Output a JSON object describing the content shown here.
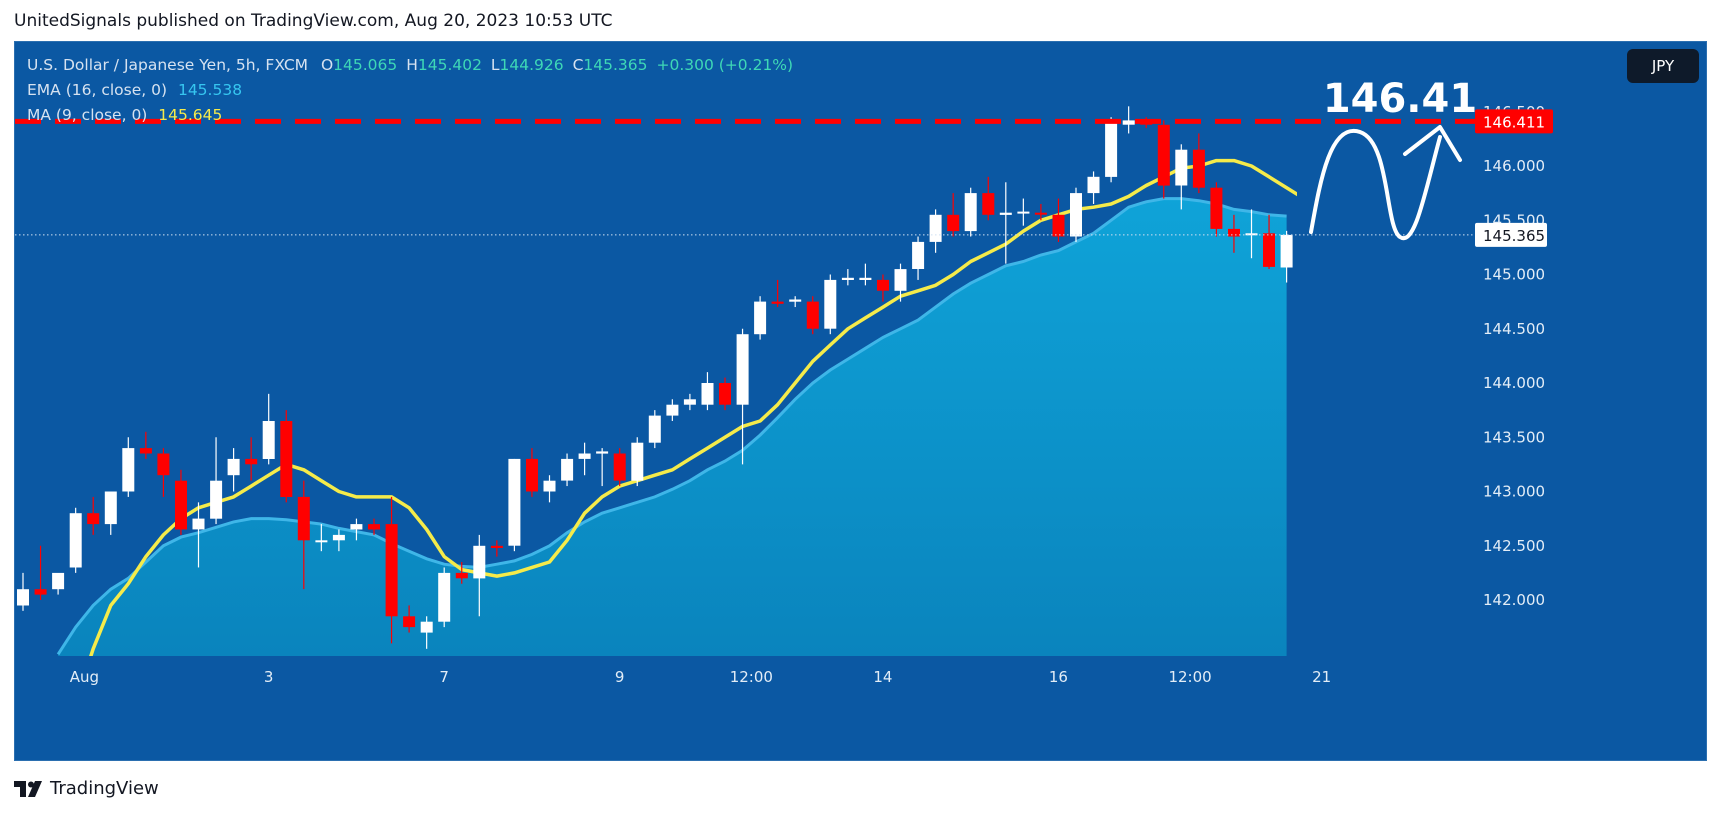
{
  "header": {
    "text": "UnitedSignals published on TradingView.com, Aug 20, 2023 10:53 UTC"
  },
  "legend": {
    "symbol": "U.S. Dollar / Japanese Yen, 5h, FXCM",
    "o_label": "O",
    "o": "145.065",
    "h_label": "H",
    "h": "145.402",
    "l_label": "L",
    "l": "144.926",
    "c_label": "C",
    "c": "145.365",
    "change": "+0.300 (+0.21%)",
    "ema_label": "EMA (16, close, 0)",
    "ema_value": "145.538",
    "ma_label": "MA (9, close, 0)",
    "ma_value": "145.645"
  },
  "currency_button": "JPY",
  "footer": {
    "brand": "TradingView"
  },
  "colors": {
    "background": "#0b58a3",
    "bull": "#ffffff",
    "bear": "#ff0000",
    "ma": "#f5eb4a",
    "ema_fill": "#0d8cc4",
    "resistance": "#ff0000"
  },
  "chart_data": {
    "type": "candlestick",
    "symbol": "USDJPY",
    "timeframe": "5h",
    "ylim": [
      141.5,
      146.6
    ],
    "yticks": [
      142.0,
      142.5,
      143.0,
      143.5,
      144.0,
      144.5,
      145.0,
      145.5,
      146.0,
      146.5
    ],
    "ytick_labels": [
      "142.000",
      "142.500",
      "143.000",
      "143.500",
      "144.000",
      "144.500",
      "145.000",
      "145.500",
      "146.000",
      "146.500"
    ],
    "xticks": [
      {
        "i": 3.5,
        "label": "Aug"
      },
      {
        "i": 14,
        "label": "3"
      },
      {
        "i": 24,
        "label": "7"
      },
      {
        "i": 34,
        "label": "9"
      },
      {
        "i": 41.5,
        "label": "12:00"
      },
      {
        "i": 49,
        "label": "14"
      },
      {
        "i": 59,
        "label": "16"
      },
      {
        "i": 66.5,
        "label": "12:00"
      },
      {
        "i": 74,
        "label": "21"
      }
    ],
    "candles": [
      {
        "o": 141.95,
        "h": 142.25,
        "l": 141.9,
        "c": 142.1
      },
      {
        "o": 142.1,
        "h": 142.5,
        "l": 142.0,
        "c": 142.05
      },
      {
        "o": 142.1,
        "h": 142.2,
        "l": 142.05,
        "c": 142.25
      },
      {
        "o": 142.3,
        "h": 142.85,
        "l": 142.25,
        "c": 142.8
      },
      {
        "o": 142.8,
        "h": 142.95,
        "l": 142.6,
        "c": 142.7
      },
      {
        "o": 142.7,
        "h": 143.0,
        "l": 142.6,
        "c": 143.0
      },
      {
        "o": 143.0,
        "h": 143.5,
        "l": 142.95,
        "c": 143.4
      },
      {
        "o": 143.4,
        "h": 143.55,
        "l": 143.3,
        "c": 143.35
      },
      {
        "o": 143.35,
        "h": 143.4,
        "l": 142.95,
        "c": 143.15
      },
      {
        "o": 143.1,
        "h": 143.2,
        "l": 142.6,
        "c": 142.65
      },
      {
        "o": 142.65,
        "h": 142.9,
        "l": 142.3,
        "c": 142.75
      },
      {
        "o": 142.75,
        "h": 143.5,
        "l": 142.7,
        "c": 143.1
      },
      {
        "o": 143.15,
        "h": 143.4,
        "l": 143.0,
        "c": 143.3
      },
      {
        "o": 143.3,
        "h": 143.5,
        "l": 143.1,
        "c": 143.25
      },
      {
        "o": 143.3,
        "h": 143.9,
        "l": 143.25,
        "c": 143.65
      },
      {
        "o": 143.65,
        "h": 143.75,
        "l": 142.9,
        "c": 142.95
      },
      {
        "o": 142.95,
        "h": 143.1,
        "l": 142.1,
        "c": 142.55
      },
      {
        "o": 142.55,
        "h": 142.7,
        "l": 142.45,
        "c": 142.55
      },
      {
        "o": 142.55,
        "h": 142.65,
        "l": 142.45,
        "c": 142.6
      },
      {
        "o": 142.65,
        "h": 142.75,
        "l": 142.55,
        "c": 142.7
      },
      {
        "o": 142.7,
        "h": 142.75,
        "l": 142.6,
        "c": 142.65
      },
      {
        "o": 142.7,
        "h": 142.95,
        "l": 141.6,
        "c": 141.85
      },
      {
        "o": 141.85,
        "h": 141.95,
        "l": 141.7,
        "c": 141.75
      },
      {
        "o": 141.7,
        "h": 141.85,
        "l": 141.55,
        "c": 141.8
      },
      {
        "o": 141.8,
        "h": 142.3,
        "l": 141.75,
        "c": 142.25
      },
      {
        "o": 142.25,
        "h": 142.35,
        "l": 142.15,
        "c": 142.2
      },
      {
        "o": 142.2,
        "h": 142.6,
        "l": 141.85,
        "c": 142.5
      },
      {
        "o": 142.5,
        "h": 142.55,
        "l": 142.4,
        "c": 142.48
      },
      {
        "o": 142.5,
        "h": 143.3,
        "l": 142.45,
        "c": 143.3
      },
      {
        "o": 143.3,
        "h": 143.4,
        "l": 142.95,
        "c": 143.0
      },
      {
        "o": 143.0,
        "h": 143.15,
        "l": 142.9,
        "c": 143.1
      },
      {
        "o": 143.1,
        "h": 143.35,
        "l": 143.05,
        "c": 143.3
      },
      {
        "o": 143.3,
        "h": 143.45,
        "l": 143.15,
        "c": 143.35
      },
      {
        "o": 143.35,
        "h": 143.4,
        "l": 143.05,
        "c": 143.37
      },
      {
        "o": 143.35,
        "h": 143.4,
        "l": 143.05,
        "c": 143.1
      },
      {
        "o": 143.1,
        "h": 143.5,
        "l": 143.05,
        "c": 143.45
      },
      {
        "o": 143.45,
        "h": 143.75,
        "l": 143.4,
        "c": 143.7
      },
      {
        "o": 143.7,
        "h": 143.85,
        "l": 143.65,
        "c": 143.8
      },
      {
        "o": 143.8,
        "h": 143.9,
        "l": 143.75,
        "c": 143.85
      },
      {
        "o": 143.8,
        "h": 144.1,
        "l": 143.75,
        "c": 144.0
      },
      {
        "o": 144.0,
        "h": 144.05,
        "l": 143.75,
        "c": 143.8
      },
      {
        "o": 143.8,
        "h": 144.5,
        "l": 143.25,
        "c": 144.45
      },
      {
        "o": 144.45,
        "h": 144.8,
        "l": 144.4,
        "c": 144.75
      },
      {
        "o": 144.75,
        "h": 144.95,
        "l": 144.7,
        "c": 144.73
      },
      {
        "o": 144.75,
        "h": 144.8,
        "l": 144.7,
        "c": 144.77
      },
      {
        "o": 144.75,
        "h": 144.8,
        "l": 144.45,
        "c": 144.5
      },
      {
        "o": 144.5,
        "h": 145.0,
        "l": 144.45,
        "c": 144.95
      },
      {
        "o": 144.95,
        "h": 145.05,
        "l": 144.9,
        "c": 144.97
      },
      {
        "o": 144.95,
        "h": 145.1,
        "l": 144.9,
        "c": 144.97
      },
      {
        "o": 144.95,
        "h": 145.0,
        "l": 144.75,
        "c": 144.85
      },
      {
        "o": 144.85,
        "h": 145.1,
        "l": 144.75,
        "c": 145.05
      },
      {
        "o": 145.05,
        "h": 145.35,
        "l": 144.95,
        "c": 145.3
      },
      {
        "o": 145.3,
        "h": 145.6,
        "l": 145.2,
        "c": 145.55
      },
      {
        "o": 145.55,
        "h": 145.75,
        "l": 145.35,
        "c": 145.4
      },
      {
        "o": 145.4,
        "h": 145.8,
        "l": 145.35,
        "c": 145.75
      },
      {
        "o": 145.75,
        "h": 145.9,
        "l": 145.5,
        "c": 145.55
      },
      {
        "o": 145.55,
        "h": 145.85,
        "l": 145.1,
        "c": 145.57
      },
      {
        "o": 145.57,
        "h": 145.7,
        "l": 145.45,
        "c": 145.58
      },
      {
        "o": 145.57,
        "h": 145.65,
        "l": 145.5,
        "c": 145.56
      },
      {
        "o": 145.55,
        "h": 145.7,
        "l": 145.3,
        "c": 145.35
      },
      {
        "o": 145.35,
        "h": 145.8,
        "l": 145.3,
        "c": 145.75
      },
      {
        "o": 145.75,
        "h": 145.95,
        "l": 145.65,
        "c": 145.9
      },
      {
        "o": 145.9,
        "h": 146.45,
        "l": 145.85,
        "c": 146.4
      },
      {
        "o": 146.38,
        "h": 146.55,
        "l": 146.3,
        "c": 146.42
      },
      {
        "o": 146.42,
        "h": 146.45,
        "l": 146.35,
        "c": 146.38
      },
      {
        "o": 146.38,
        "h": 146.42,
        "l": 145.7,
        "c": 145.82
      },
      {
        "o": 145.82,
        "h": 146.2,
        "l": 145.6,
        "c": 146.15
      },
      {
        "o": 146.15,
        "h": 146.3,
        "l": 145.75,
        "c": 145.8
      },
      {
        "o": 145.8,
        "h": 145.85,
        "l": 145.35,
        "c": 145.42
      },
      {
        "o": 145.42,
        "h": 145.55,
        "l": 145.2,
        "c": 145.35
      },
      {
        "o": 145.37,
        "h": 145.6,
        "l": 145.15,
        "c": 145.38
      },
      {
        "o": 145.38,
        "h": 145.55,
        "l": 145.05,
        "c": 145.07
      },
      {
        "o": 145.065,
        "h": 145.402,
        "l": 144.926,
        "c": 145.365
      }
    ],
    "ma9": [
      141.05,
      141.55,
      141.95,
      142.15,
      142.4,
      142.6,
      142.75,
      142.85,
      142.9,
      142.95,
      143.05,
      143.15,
      143.25,
      143.2,
      143.1,
      143.0,
      142.95,
      142.95,
      142.95,
      142.85,
      142.65,
      142.4,
      142.28,
      142.25,
      142.22,
      142.25,
      142.3,
      142.35,
      142.55,
      142.8,
      142.95,
      143.05,
      143.1,
      143.15,
      143.2,
      143.3,
      143.4,
      143.5,
      143.6,
      143.65,
      143.8,
      144.0,
      144.2,
      144.35,
      144.5,
      144.6,
      144.7,
      144.8,
      144.85,
      144.9,
      145.0,
      145.12,
      145.2,
      145.28,
      145.4,
      145.5,
      145.55,
      145.6,
      145.62,
      145.65,
      145.72,
      145.82,
      145.9,
      145.98,
      146.0,
      146.05,
      146.05,
      146.0,
      145.9,
      145.8,
      145.7,
      145.6,
      145.645
    ],
    "ema16": [
      141.5,
      141.75,
      141.95,
      142.1,
      142.2,
      142.35,
      142.5,
      142.58,
      142.62,
      142.67,
      142.72,
      142.75,
      142.75,
      142.74,
      142.72,
      142.7,
      142.66,
      142.63,
      142.6,
      142.52,
      142.45,
      142.38,
      142.33,
      142.31,
      142.3,
      142.33,
      142.36,
      142.42,
      142.5,
      142.62,
      142.72,
      142.8,
      142.85,
      142.9,
      142.95,
      143.02,
      143.1,
      143.2,
      143.28,
      143.38,
      143.52,
      143.68,
      143.85,
      144.0,
      144.12,
      144.22,
      144.32,
      144.42,
      144.5,
      144.58,
      144.7,
      144.82,
      144.92,
      145.0,
      145.08,
      145.12,
      145.18,
      145.22,
      145.3,
      145.38,
      145.5,
      145.62,
      145.67,
      145.7,
      145.7,
      145.68,
      145.65,
      145.6,
      145.58,
      145.55,
      145.538
    ],
    "resistance": {
      "value": 146.411,
      "label": "146.411"
    },
    "last_price": {
      "value": 145.365,
      "label": "145.365"
    },
    "annotation": {
      "text": "146.41",
      "target": 146.41
    }
  }
}
